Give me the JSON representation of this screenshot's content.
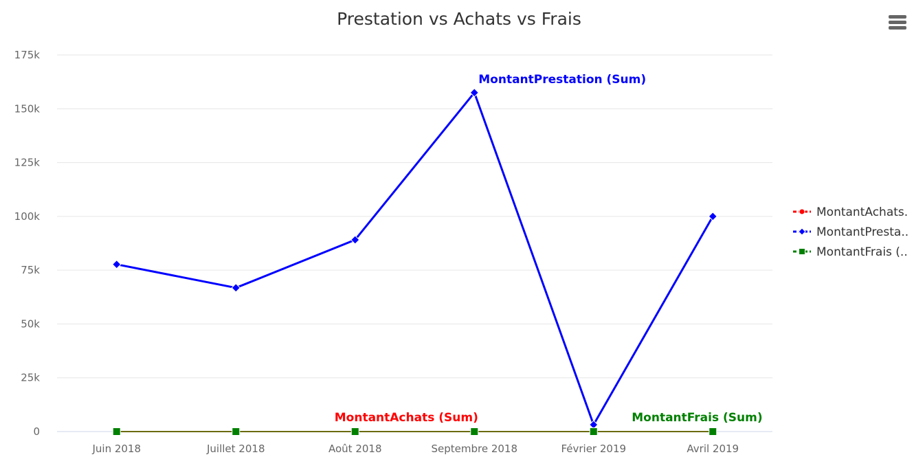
{
  "chart_data": {
    "type": "line",
    "title": "Prestation vs Achats vs Frais",
    "xlabel": "",
    "ylabel": "",
    "categories": [
      "Juin 2018",
      "Juillet 2018",
      "Août 2018",
      "Septembre 2018",
      "Février 2019",
      "Avril 2019"
    ],
    "ylim": [
      0,
      175000
    ],
    "yticks": [
      0,
      25000,
      50000,
      75000,
      100000,
      125000,
      150000,
      175000
    ],
    "ytick_labels": [
      "0",
      "25k",
      "50k",
      "75k",
      "100k",
      "125k",
      "150k",
      "175k"
    ],
    "grid": true,
    "legend_position": "right",
    "series": [
      {
        "name": "MontantAchats (Sum)",
        "legend_label": "MontantAchats.",
        "color": "#ff0000",
        "marker": "circle",
        "values": [
          0,
          0,
          0,
          0,
          0,
          0
        ],
        "label_at": 2
      },
      {
        "name": "MontantPrestation (Sum)",
        "legend_label": "MontantPresta..",
        "color": "#0000ff",
        "marker": "diamond",
        "values": [
          77700,
          66800,
          89100,
          157500,
          3200,
          100000
        ],
        "label_at": 3
      },
      {
        "name": "MontantFrais (Sum)",
        "legend_label": "MontantFrais (..",
        "color": "#008000",
        "marker": "square",
        "values": [
          0,
          0,
          0,
          0,
          0,
          0
        ],
        "label_at": 5
      }
    ]
  },
  "toolbar": {
    "menu_icon": "hamburger-menu-icon"
  }
}
